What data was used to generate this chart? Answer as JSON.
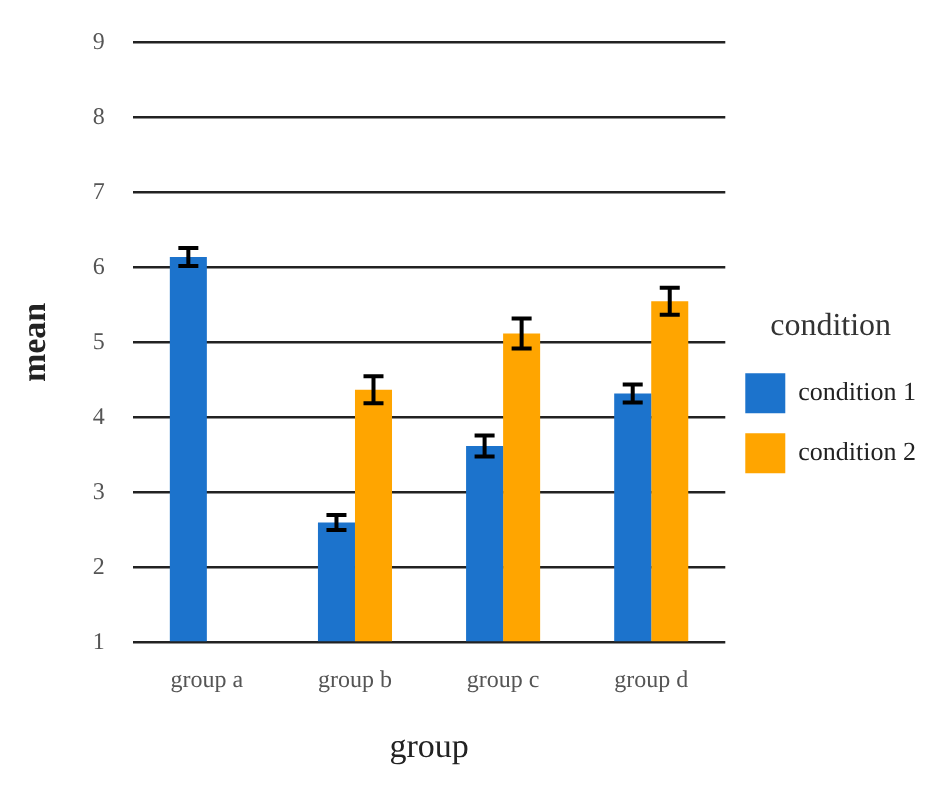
{
  "chart_data": {
    "type": "bar",
    "xlabel": "group",
    "ylabel": "mean",
    "legend_title": "condition",
    "categories": [
      "group a",
      "group b",
      "group c",
      "group d"
    ],
    "series": [
      {
        "name": "condition 1",
        "color": "#1c73cc",
        "values": [
          6.14,
          2.6,
          3.62,
          4.32
        ],
        "errors": [
          0.12,
          0.1,
          0.14,
          0.12
        ]
      },
      {
        "name": "condition 2",
        "color": "#ffa500",
        "values": [
          null,
          4.37,
          5.12,
          5.55
        ],
        "errors": [
          null,
          0.18,
          0.2,
          0.18
        ]
      }
    ],
    "ylim": [
      1,
      9
    ],
    "yticks": [
      1,
      2,
      3,
      4,
      5,
      6,
      7,
      8,
      9
    ],
    "grid": "y",
    "legend": "right"
  }
}
